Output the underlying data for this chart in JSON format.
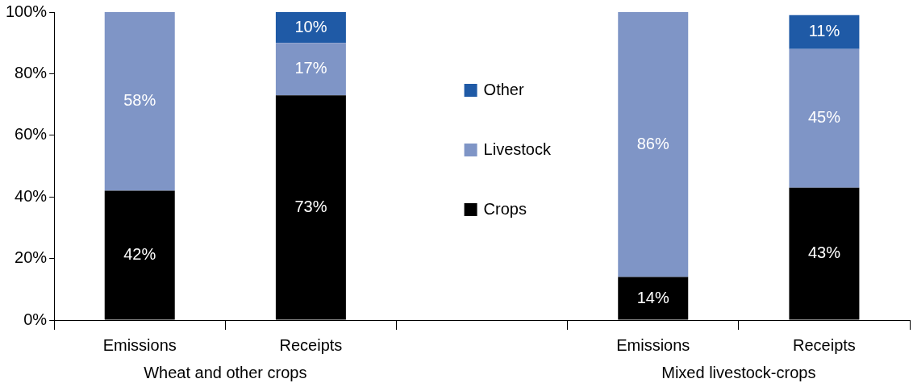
{
  "chart_data": {
    "type": "bar",
    "stacked": true,
    "categories": [
      "Emissions",
      "Receipts",
      null,
      "Emissions",
      "Receipts"
    ],
    "series": [
      {
        "name": "Crops",
        "color": "#000000",
        "values": [
          42,
          73,
          null,
          14,
          43
        ],
        "value_labels": [
          "42%",
          "73%",
          null,
          "14%",
          "43%"
        ]
      },
      {
        "name": "Livestock",
        "color": "#7f95c6",
        "values": [
          58,
          17,
          null,
          86,
          45
        ],
        "value_labels": [
          "58%",
          "17%",
          null,
          "86%",
          "45%"
        ]
      },
      {
        "name": "Other",
        "color": "#1f5aa6",
        "values": [
          null,
          10,
          null,
          null,
          11
        ],
        "value_labels": [
          null,
          "10%",
          null,
          null,
          "11%"
        ]
      }
    ],
    "ylim": [
      0,
      100
    ],
    "yticks": [
      {
        "value": 0,
        "label": "0%"
      },
      {
        "value": 20,
        "label": "20%"
      },
      {
        "value": 40,
        "label": "40%"
      },
      {
        "value": 60,
        "label": "60%"
      },
      {
        "value": 80,
        "label": "80%"
      },
      {
        "value": 100,
        "label": "100%"
      }
    ],
    "grid": false,
    "legend": "center",
    "annotations": [
      "Wheat and other crops",
      "Mixed livestock-crops"
    ]
  }
}
